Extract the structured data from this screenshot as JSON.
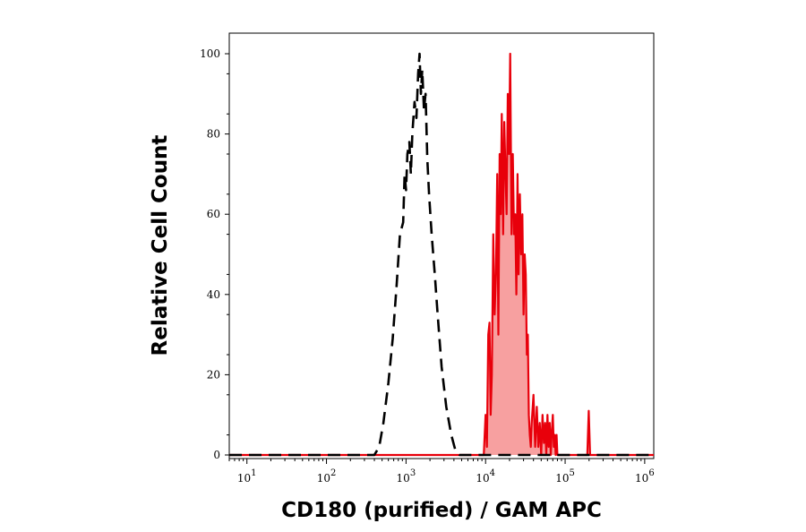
{
  "chart_data": {
    "type": "area",
    "xlabel": "CD180 (purified) / GAM APC",
    "ylabel": "Relative Cell Count",
    "x_scale": "log",
    "xlim": [
      6,
      1300000
    ],
    "ylim": [
      0,
      100
    ],
    "x_ticks": [
      {
        "value": 10,
        "base": "10",
        "exp": "1"
      },
      {
        "value": 100,
        "base": "10",
        "exp": "2"
      },
      {
        "value": 1000,
        "base": "10",
        "exp": "3"
      },
      {
        "value": 10000,
        "base": "10",
        "exp": "4"
      },
      {
        "value": 100000,
        "base": "10",
        "exp": "5"
      },
      {
        "value": 1000000,
        "base": "10",
        "exp": "6"
      }
    ],
    "y_ticks": [
      "0",
      "20",
      "40",
      "60",
      "80",
      "100"
    ],
    "grid": false,
    "series": [
      {
        "style": "dashed",
        "color": "#000000",
        "x": [
          6,
          400,
          460,
          520,
          600,
          680,
          760,
          840,
          920,
          960,
          1000,
          1040,
          1100,
          1150,
          1200,
          1280,
          1350,
          1420,
          1480,
          1540,
          1600,
          1680,
          1760,
          1850,
          1950,
          2100,
          2300,
          2500,
          2800,
          3200,
          3700,
          4200,
          4700,
          6000,
          1300000
        ],
        "y": [
          0,
          0,
          2,
          8,
          18,
          29,
          42,
          55,
          58,
          70,
          66,
          75,
          78,
          70,
          80,
          88,
          84,
          95,
          100,
          90,
          96,
          86,
          90,
          74,
          65,
          55,
          45,
          35,
          22,
          12,
          5,
          1,
          0,
          0,
          0
        ]
      },
      {
        "style": "solid-filled",
        "color": "#e8000b",
        "fill": "#f7a0a0",
        "x": [
          6,
          9500,
          10000,
          10400,
          10800,
          11200,
          11600,
          12000,
          12500,
          13000,
          13500,
          14000,
          14500,
          15000,
          15500,
          16000,
          16600,
          17200,
          17800,
          18400,
          19000,
          19700,
          20400,
          21200,
          22000,
          22800,
          23600,
          24400,
          25200,
          26000,
          27000,
          28000,
          29000,
          30000,
          31000,
          32000,
          33000,
          34000,
          35000,
          36000,
          37000,
          38000,
          40000,
          42000,
          44000,
          46000,
          48000,
          50000,
          52000,
          54000,
          56000,
          58000,
          60000,
          62000,
          64000,
          66000,
          68000,
          70000,
          72000,
          74000,
          76000,
          78000,
          80000,
          190000,
          198000,
          206000,
          214000,
          1300000
        ],
        "y": [
          0,
          0,
          10,
          2,
          30,
          33,
          10,
          20,
          55,
          35,
          45,
          70,
          30,
          75,
          60,
          85,
          55,
          83,
          70,
          60,
          90,
          75,
          100,
          55,
          75,
          55,
          60,
          40,
          70,
          45,
          65,
          50,
          60,
          35,
          50,
          45,
          25,
          30,
          10,
          5,
          2,
          8,
          15,
          2,
          12,
          2,
          8,
          0,
          10,
          3,
          8,
          0,
          10,
          2,
          8,
          0,
          6,
          10,
          2,
          5,
          0,
          5,
          0,
          0,
          11,
          0,
          0,
          0
        ]
      }
    ]
  }
}
